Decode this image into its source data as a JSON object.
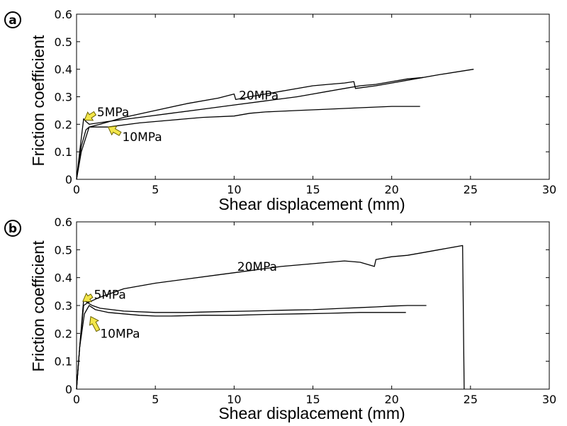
{
  "chart_data": [
    {
      "type": "line",
      "panel_label": "a",
      "xlabel": "Shear displacement (mm)",
      "ylabel": "Friction coefficient",
      "xlim": [
        0,
        30
      ],
      "ylim": [
        0,
        0.6
      ],
      "xticks": [
        "0",
        "5",
        "10",
        "15",
        "20",
        "25",
        "30"
      ],
      "yticks": [
        "0",
        "0.1",
        "0.2",
        "0.3",
        "0.4",
        "0.5",
        "0.6"
      ],
      "grid": false,
      "annotations": [
        {
          "text": "20MPa",
          "x": 10.3,
          "y": 0.305,
          "arrow": false
        },
        {
          "text": "5MPa",
          "x": 1.3,
          "y": 0.245,
          "arrow": true,
          "arrow_tip": [
            0.5,
            0.215
          ]
        },
        {
          "text": "10MPa",
          "x": 2.9,
          "y": 0.155,
          "arrow": true,
          "arrow_tip": [
            2.0,
            0.19
          ]
        }
      ],
      "series": [
        {
          "name": "20MPa",
          "color": "#000000",
          "x": [
            0,
            0.3,
            0.8,
            1.5,
            3,
            5,
            7,
            9,
            10,
            10.1,
            11,
            13,
            15,
            16,
            17,
            17.6,
            17.7,
            19,
            20,
            21,
            23,
            25.2
          ],
          "y": [
            0,
            0.1,
            0.19,
            0.2,
            0.225,
            0.25,
            0.275,
            0.295,
            0.31,
            0.29,
            0.3,
            0.32,
            0.34,
            0.345,
            0.35,
            0.355,
            0.33,
            0.34,
            0.35,
            0.36,
            0.38,
            0.4
          ]
        },
        {
          "name": "5MPa",
          "color": "#000000",
          "x": [
            0,
            0.2,
            0.45,
            0.6,
            0.8,
            2,
            4,
            6,
            8,
            10,
            12,
            14,
            15,
            16,
            17,
            18,
            19,
            20,
            21,
            22
          ],
          "y": [
            0,
            0.1,
            0.22,
            0.21,
            0.2,
            0.21,
            0.225,
            0.24,
            0.255,
            0.27,
            0.285,
            0.3,
            0.31,
            0.32,
            0.33,
            0.34,
            0.345,
            0.355,
            0.365,
            0.37
          ]
        },
        {
          "name": "10MPa",
          "color": "#000000",
          "x": [
            0,
            0.3,
            0.6,
            0.8,
            2,
            4,
            6,
            8,
            10,
            11,
            12,
            14,
            16,
            18,
            20,
            21.8
          ],
          "y": [
            0,
            0.12,
            0.18,
            0.19,
            0.19,
            0.205,
            0.215,
            0.225,
            0.23,
            0.24,
            0.245,
            0.25,
            0.255,
            0.26,
            0.265,
            0.265
          ]
        }
      ]
    },
    {
      "type": "line",
      "panel_label": "b",
      "xlabel": "Shear displacement (mm)",
      "ylabel": "Friction coefficient",
      "xlim": [
        0,
        30
      ],
      "ylim": [
        0,
        0.6
      ],
      "xticks": [
        "0",
        "5",
        "10",
        "15",
        "20",
        "25",
        "30"
      ],
      "yticks": [
        "0",
        "0.1",
        "0.2",
        "0.3",
        "0.4",
        "0.5",
        "0.6"
      ],
      "grid": false,
      "annotations": [
        {
          "text": "20MPa",
          "x": 10.2,
          "y": 0.44,
          "arrow": false
        },
        {
          "text": "5MPa",
          "x": 1.1,
          "y": 0.34,
          "arrow": true,
          "arrow_tip": [
            0.4,
            0.315
          ]
        },
        {
          "text": "10MPa",
          "x": 1.5,
          "y": 0.2,
          "arrow": true,
          "arrow_tip": [
            0.9,
            0.26
          ]
        }
      ],
      "series": [
        {
          "name": "20MPa",
          "color": "#000000",
          "x": [
            0,
            0.2,
            0.45,
            0.7,
            1.5,
            3,
            5,
            7,
            9,
            11,
            13,
            15,
            16,
            17,
            18,
            18.9,
            19,
            20,
            21,
            22,
            23,
            24.5,
            24.6
          ],
          "y": [
            0,
            0.15,
            0.3,
            0.31,
            0.33,
            0.36,
            0.38,
            0.395,
            0.41,
            0.425,
            0.44,
            0.45,
            0.455,
            0.46,
            0.455,
            0.44,
            0.465,
            0.475,
            0.48,
            0.49,
            0.5,
            0.515,
            0
          ]
        },
        {
          "name": "5MPa",
          "color": "#000000",
          "x": [
            0,
            0.2,
            0.45,
            0.7,
            1,
            1.5,
            3,
            5,
            7,
            9,
            11,
            13,
            15,
            17,
            19,
            20,
            21,
            22.2
          ],
          "y": [
            0,
            0.15,
            0.32,
            0.31,
            0.3,
            0.29,
            0.28,
            0.275,
            0.275,
            0.278,
            0.28,
            0.283,
            0.285,
            0.29,
            0.295,
            0.298,
            0.3,
            0.3
          ]
        },
        {
          "name": "10MPa",
          "color": "#000000",
          "x": [
            0,
            0.2,
            0.5,
            0.8,
            1.2,
            2,
            3,
            4,
            5,
            6,
            8,
            10,
            12,
            14,
            16,
            18,
            20,
            20.9
          ],
          "y": [
            0,
            0.15,
            0.27,
            0.3,
            0.285,
            0.275,
            0.27,
            0.265,
            0.262,
            0.262,
            0.265,
            0.265,
            0.268,
            0.27,
            0.272,
            0.275,
            0.275,
            0.275
          ]
        }
      ]
    }
  ]
}
